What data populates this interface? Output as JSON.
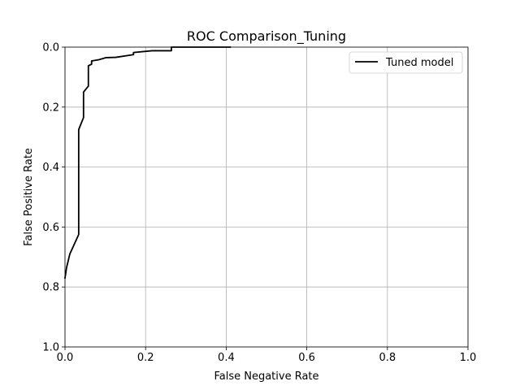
{
  "chart_data": {
    "type": "line",
    "title": "ROC Comparison_Tuning",
    "xlabel": "False Negative Rate",
    "ylabel": "False Positive Rate",
    "xlim": [
      0.0,
      1.0
    ],
    "ylim": [
      1.0,
      0.0
    ],
    "y_inverted": true,
    "grid": true,
    "legend_position": "top-right",
    "x_ticks": [
      0.0,
      0.2,
      0.4,
      0.6,
      0.8,
      1.0
    ],
    "x_tick_labels": [
      "0.0",
      "0.2",
      "0.4",
      "0.6",
      "0.8",
      "1.0"
    ],
    "y_ticks": [
      0.0,
      0.2,
      0.4,
      0.6,
      0.8,
      1.0
    ],
    "y_tick_labels": [
      "0.0",
      "0.2",
      "0.4",
      "0.6",
      "0.8",
      "1.0"
    ],
    "series": [
      {
        "name": "Tuned model",
        "color": "#000000",
        "x": [
          0.0,
          0.004,
          0.012,
          0.034,
          0.034,
          0.046,
          0.046,
          0.058,
          0.058,
          0.066,
          0.066,
          0.084,
          0.102,
          0.126,
          0.17,
          0.17,
          0.216,
          0.264,
          0.264,
          0.41
        ],
        "y": [
          0.77,
          0.735,
          0.69,
          0.625,
          0.275,
          0.235,
          0.15,
          0.13,
          0.062,
          0.057,
          0.046,
          0.042,
          0.035,
          0.034,
          0.025,
          0.018,
          0.012,
          0.012,
          0.0,
          0.0
        ]
      }
    ]
  }
}
